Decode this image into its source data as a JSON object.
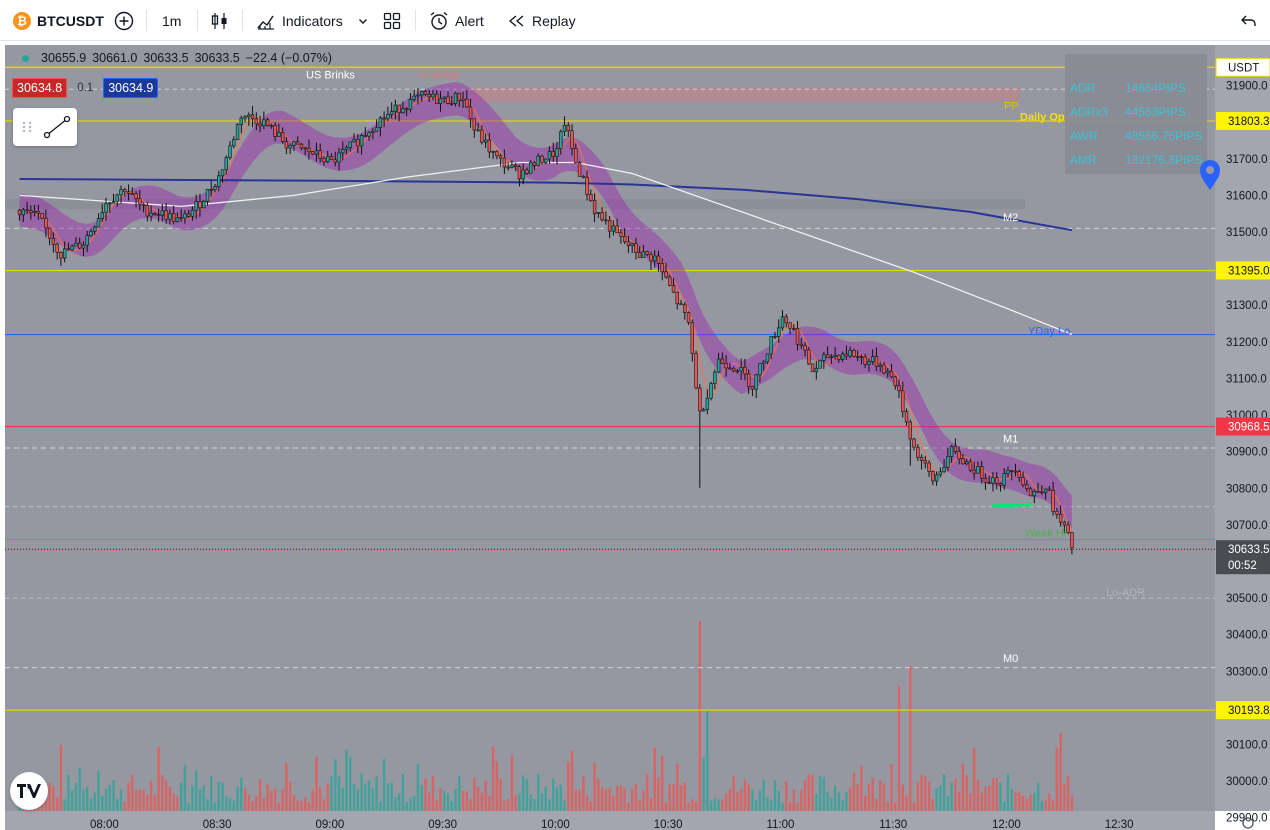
{
  "toolbar": {
    "symbol": "BTCUSDT",
    "coin_glyph": "₿",
    "interval": "1m",
    "indicators_label": "Indicators",
    "alert_label": "Alert",
    "replay_label": "Replay"
  },
  "legend": {
    "open": "30655.9",
    "high": "30661.0",
    "low": "30633.5",
    "close": "30633.5",
    "change": "−22.4 (−0.07%)",
    "bid": "30634.8",
    "spread": "0.1",
    "ask": "30634.9"
  },
  "stats_panel": {
    "rows": [
      {
        "label": "ADR",
        "value": "14854PIPS"
      },
      {
        "label": "ADRx3",
        "value": "44563PIPS"
      },
      {
        "label": "AWR",
        "value": "48556.75PIPS"
      },
      {
        "label": "AMR",
        "value": "132176.3PIPS"
      }
    ]
  },
  "chart_data": {
    "type": "candlestick",
    "symbol": "BTCUSDT",
    "interval": "1m",
    "ylim": [
      29850,
      31970
    ],
    "price_ticks": [
      29900,
      30000,
      30100,
      30200,
      30300,
      30400,
      30500,
      30600,
      30700,
      30800,
      30900,
      31000,
      31100,
      31200,
      31300,
      31400,
      31500,
      31600,
      31700,
      31800,
      31900
    ],
    "time_ticks": [
      "08:00",
      "08:30",
      "09:00",
      "09:30",
      "10:00",
      "10:30",
      "11:00",
      "11:30",
      "12:00",
      "12:30"
    ],
    "time_tick_minutes": [
      0,
      30,
      60,
      90,
      120,
      150,
      180,
      210,
      240,
      270
    ],
    "x_range_minutes": [
      -23,
      287
    ],
    "price_path": [
      [
        -23,
        31560
      ],
      [
        -18,
        31540
      ],
      [
        -12,
        31440
      ],
      [
        -6,
        31470
      ],
      [
        0,
        31580
      ],
      [
        5,
        31620
      ],
      [
        10,
        31560
      ],
      [
        15,
        31550
      ],
      [
        20,
        31530
      ],
      [
        25,
        31580
      ],
      [
        30,
        31650
      ],
      [
        33,
        31730
      ],
      [
        36,
        31820
      ],
      [
        42,
        31800
      ],
      [
        48,
        31740
      ],
      [
        54,
        31720
      ],
      [
        60,
        31690
      ],
      [
        66,
        31740
      ],
      [
        72,
        31800
      ],
      [
        78,
        31840
      ],
      [
        84,
        31870
      ],
      [
        90,
        31860
      ],
      [
        95,
        31870
      ],
      [
        98,
        31780
      ],
      [
        104,
        31700
      ],
      [
        110,
        31660
      ],
      [
        116,
        31700
      ],
      [
        120,
        31720
      ],
      [
        122,
        31800
      ],
      [
        125,
        31690
      ],
      [
        130,
        31560
      ],
      [
        137,
        31480
      ],
      [
        142,
        31440
      ],
      [
        146,
        31430
      ],
      [
        150,
        31350
      ],
      [
        155,
        31250
      ],
      [
        158,
        31000
      ],
      [
        163,
        31150
      ],
      [
        168,
        31130
      ],
      [
        172,
        31080
      ],
      [
        176,
        31180
      ],
      [
        180,
        31270
      ],
      [
        183,
        31230
      ],
      [
        188,
        31120
      ],
      [
        192,
        31160
      ],
      [
        198,
        31170
      ],
      [
        202,
        31150
      ],
      [
        206,
        31140
      ],
      [
        210,
        31090
      ],
      [
        215,
        30910
      ],
      [
        220,
        30820
      ],
      [
        225,
        30900
      ],
      [
        230,
        30860
      ],
      [
        234,
        30830
      ],
      [
        238,
        30820
      ],
      [
        242,
        30860
      ],
      [
        246,
        30780
      ],
      [
        250,
        30810
      ],
      [
        253,
        30720
      ],
      [
        255,
        30690
      ],
      [
        257,
        30640
      ]
    ],
    "levels": [
      {
        "price": 31950,
        "label": "USDT",
        "color": "#e3d300"
      },
      {
        "price": 31803.3,
        "label": "31803.3",
        "color": "#e3d300"
      },
      {
        "price": 31395.0,
        "label": "31395.0",
        "color": "#e3d300"
      },
      {
        "price": 30968.5,
        "label": "30968.5",
        "color": "#f23645"
      },
      {
        "price": 30193.8,
        "label": "30193.8",
        "color": "#e3d300"
      },
      {
        "price": 31220,
        "label": "",
        "color": "#2962ff"
      },
      {
        "price": 30660,
        "label": "",
        "color": "#4caf50"
      }
    ],
    "current_price": "30633.5",
    "countdown": "00:52",
    "annotations": [
      {
        "text": "US Brinks",
        "color": "#ffffff"
      },
      {
        "text": "NewYork",
        "color": "#e57373"
      },
      {
        "text": "PP",
        "color": "#e3c000"
      },
      {
        "text": "Daily Open",
        "color": "#f5e000"
      },
      {
        "text": "M2",
        "color": "#ffffff"
      },
      {
        "text": "YDay Lo",
        "color": "#2962ff"
      },
      {
        "text": "M1",
        "color": "#ffffff"
      },
      {
        "text": "Week Hi",
        "color": "#4caf50"
      },
      {
        "text": "Lo-ADR",
        "color": "#b0b3bb"
      },
      {
        "text": "M0",
        "color": "#ffffff"
      }
    ],
    "colors": {
      "background": "#9598a1",
      "up": "#26a69a",
      "down": "#ef5350",
      "ma_band": "#9c27b0",
      "ma_slow": "#283593",
      "ma_white": "#f0f0f0"
    }
  }
}
